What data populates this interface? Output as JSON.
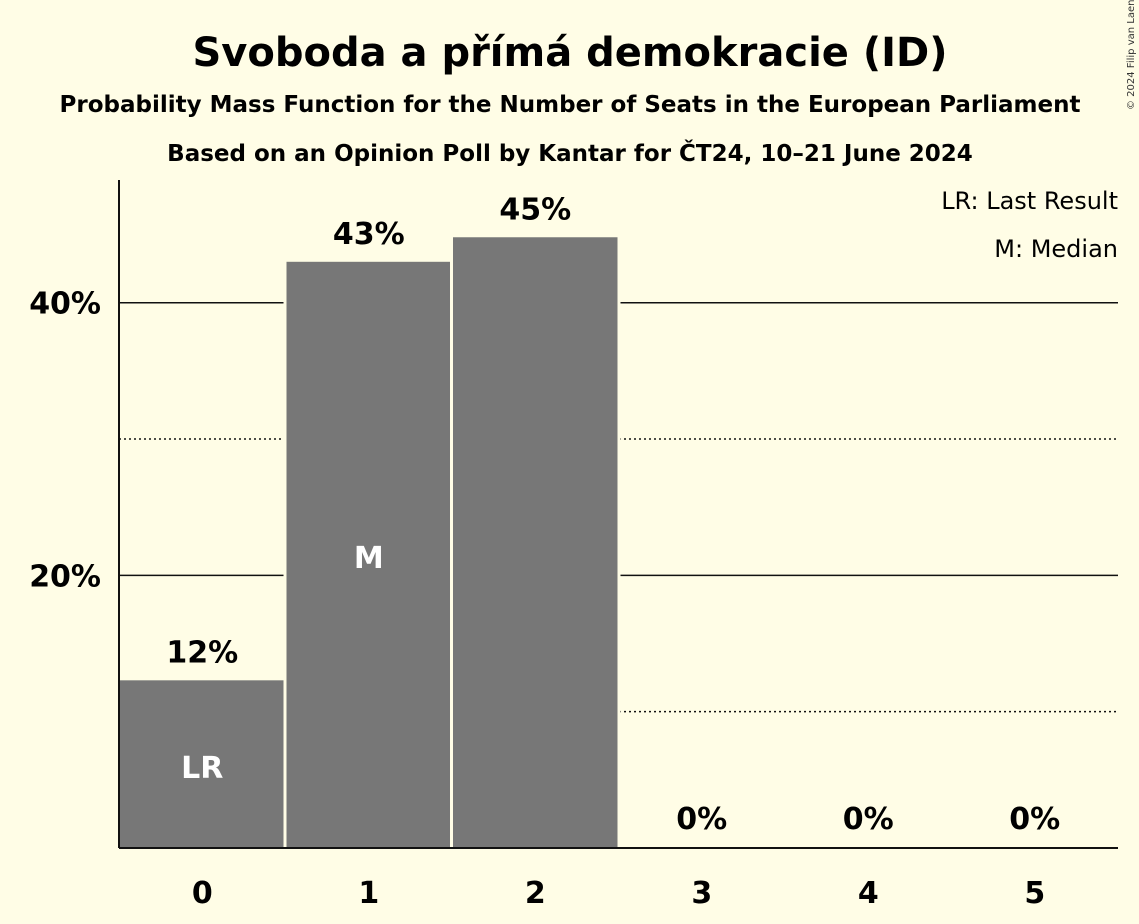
{
  "chart_data": {
    "type": "bar",
    "title": "Svoboda a přímá demokracie (ID)",
    "subtitle": "Probability Mass Function for the Number of Seats in the European Parliament",
    "subtitle2": "Based on an Opinion Poll by Kantar for ČT24, 10–21 June 2024",
    "categories": [
      "0",
      "1",
      "2",
      "3",
      "4",
      "5"
    ],
    "values": [
      12.3,
      43.0,
      44.8,
      0,
      0,
      0
    ],
    "value_labels": [
      "12%",
      "43%",
      "45%",
      "0%",
      "0%",
      "0%"
    ],
    "bar_markers": [
      "LR",
      "M",
      "",
      "",
      "",
      ""
    ],
    "ylim": [
      0,
      49
    ],
    "yticks": [
      {
        "value": 20,
        "label": "20%"
      },
      {
        "value": 40,
        "label": "40%"
      }
    ],
    "minor_gridlines": [
      10,
      30
    ],
    "grid": true,
    "legend_position": "top-right",
    "legend": [
      "LR: Last Result",
      "M: Median"
    ],
    "bar_color": "#777777",
    "background_color": "#FFFDE6",
    "copyright": "© 2024 Filip van Laenen"
  }
}
